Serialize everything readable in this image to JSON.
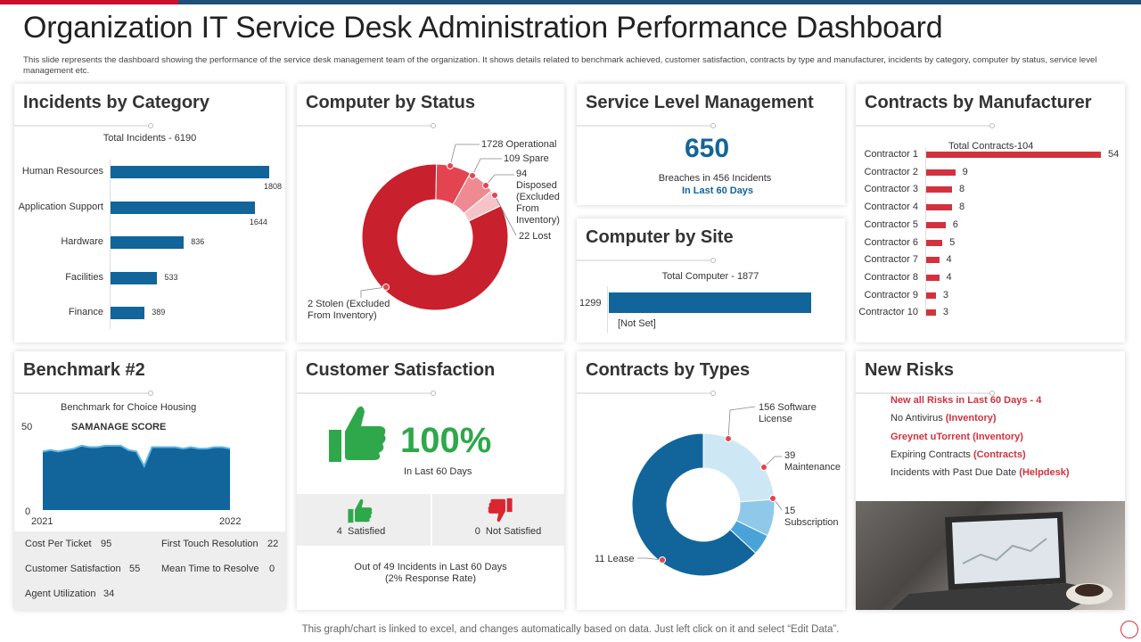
{
  "header": {
    "title": "Organization IT Service Desk Administration Performance Dashboard",
    "subtitle": "This slide represents the dashboard showing the performance of the service desk management team of the organization. It shows details related to benchmark achieved, customer satisfaction, contracts by type and manufacturer, incidents by category, computer by status, service level management etc."
  },
  "incidents": {
    "title": "Incidents by Category",
    "total_label": "Total Incidents - 6190",
    "chart_data": {
      "type": "bar",
      "orientation": "horizontal",
      "title": "Total Incidents - 6190",
      "categories": [
        "Human Resources",
        "Application Support",
        "Hardware",
        "Facilities",
        "Finance"
      ],
      "values": [
        1808,
        1644,
        836,
        533,
        389
      ],
      "value_labels": [
        "1808",
        "1644",
        "836",
        "533",
        "389"
      ],
      "xlim": [
        0,
        1808
      ]
    }
  },
  "status": {
    "title": "Computer by Status",
    "chart_data": {
      "type": "pie",
      "style": "donut",
      "labels": [
        "Operational",
        "Spare",
        "Disposed (Excluded From Inventory)",
        "Lost",
        "Stolen (Excluded From Inventory)"
      ],
      "values": [
        1728,
        109,
        94,
        22,
        2
      ],
      "colors": [
        "#c8202c",
        "#e4444f",
        "#ef8a93",
        "#f6c3c8",
        "#c8202c"
      ]
    },
    "labels": {
      "operational": "1728 Operational",
      "spare": "109 Spare",
      "disposed_1": "94",
      "disposed_2": "Disposed",
      "disposed_3": "(Excluded",
      "disposed_4": "From",
      "disposed_5": "Inventory)",
      "lost": "22 Lost",
      "stolen_1": "2 Stolen (Excluded",
      "stolen_2": "From Inventory)"
    }
  },
  "slm": {
    "title": "Service Level Management",
    "value": "650",
    "line1": "Breaches in 456 Incidents",
    "line2": "In Last 60 Days"
  },
  "site": {
    "title": "Computer by Site",
    "chart_data": {
      "type": "bar",
      "orientation": "horizontal",
      "title": "Total Computer - 1877",
      "categories": [
        "[Not Set]"
      ],
      "values": [
        1299
      ],
      "value_labels": [
        "1299"
      ],
      "xlim": [
        0,
        1299
      ]
    }
  },
  "manufacturer": {
    "title": "Contracts by Manufacturer",
    "chart_data": {
      "type": "bar",
      "orientation": "horizontal",
      "title": "Total Contracts-104",
      "categories": [
        "Contractor 1",
        "Contractor 2",
        "Contractor 3",
        "Contractor 4",
        "Contractor 5",
        "Contractor 6",
        "Contractor 7",
        "Contractor 8",
        "Contractor 9",
        "Contractor 10"
      ],
      "values": [
        54,
        9,
        8,
        8,
        6,
        5,
        4,
        4,
        3,
        3
      ],
      "value_labels": [
        "54",
        "9",
        "8",
        "8",
        "6",
        "5",
        "4",
        "4",
        "3",
        "3"
      ],
      "xlim": [
        0,
        54
      ]
    }
  },
  "benchmark": {
    "title": "Benchmark #2",
    "subtitle": "Benchmark for Choice Housing",
    "series_label": "SAMANAGE SCORE",
    "chart_data": {
      "type": "area",
      "x_labels": [
        "2021",
        "2022"
      ],
      "y_ticks": [
        "50",
        "0"
      ],
      "ylim": [
        0,
        50
      ],
      "values": [
        40,
        41,
        40,
        41,
        42,
        44,
        43,
        43,
        44,
        44,
        44,
        41,
        40,
        30,
        43,
        43,
        43,
        43,
        42,
        43,
        42,
        42,
        43,
        43,
        42
      ],
      "y_label_top": "50",
      "y_label_bottom": "0",
      "x_label_left": "2021",
      "x_label_right": "2022"
    },
    "stats": {
      "cost_label": "Cost Per Ticket",
      "cost_value": "95",
      "ftr_label": "First Touch Resolution",
      "ftr_value": "22",
      "cs_label": "Customer Satisfaction",
      "cs_value": "55",
      "mttr_label": "Mean Time to Resolve",
      "mttr_value": "0",
      "au_label": "Agent Utilization",
      "au_value": "34"
    }
  },
  "satisfaction": {
    "title": "Customer Satisfaction",
    "percent": "100%",
    "period": "In Last 60 Days",
    "satisfied": "4  Satisfied",
    "not_satisfied": "0  Not Satisfied",
    "summary_1": "Out of 49 Incidents in Last 60 Days",
    "summary_2": "(2% Response Rate)",
    "colors": {
      "positive": "#2ea84a",
      "negative": "#d9262f"
    }
  },
  "types": {
    "title": "Contracts by Types",
    "chart_data": {
      "type": "pie",
      "style": "donut",
      "labels": [
        "Software License",
        "Maintenance",
        "Subscription",
        "Lease"
      ],
      "values": [
        156,
        39,
        15,
        11
      ],
      "colors": [
        "#cde7f5",
        "#8fc9ea",
        "#4aa3d8",
        "#11659a"
      ]
    },
    "labels": {
      "software_1": "156 Software",
      "software_2": "License",
      "maintenance_1": "39",
      "maintenance_2": "Maintenance",
      "subscription_1": "15",
      "subscription_2": "Subscription",
      "lease": "11 Lease"
    }
  },
  "risks": {
    "title": "New Risks",
    "headline": "New all Risks in Last 60 Days - 4",
    "items": [
      {
        "text": "No Antivirus ",
        "tag": "(Inventory)"
      },
      {
        "text": "Greynet uTorrent ",
        "tag": "(Inventory)"
      },
      {
        "text": "Expiring Contracts ",
        "tag": "(Contracts)"
      },
      {
        "text": "Incidents with Past Due Date ",
        "tag": "(Helpdesk)"
      }
    ]
  },
  "footer": {
    "text": "This graph/chart is linked to excel,  and changes automatically based on data. Just left click on it and select “Edit Data”."
  },
  "theme": {
    "blue": "#11659a",
    "red": "#d2323e",
    "dark_red": "#c8202c"
  }
}
